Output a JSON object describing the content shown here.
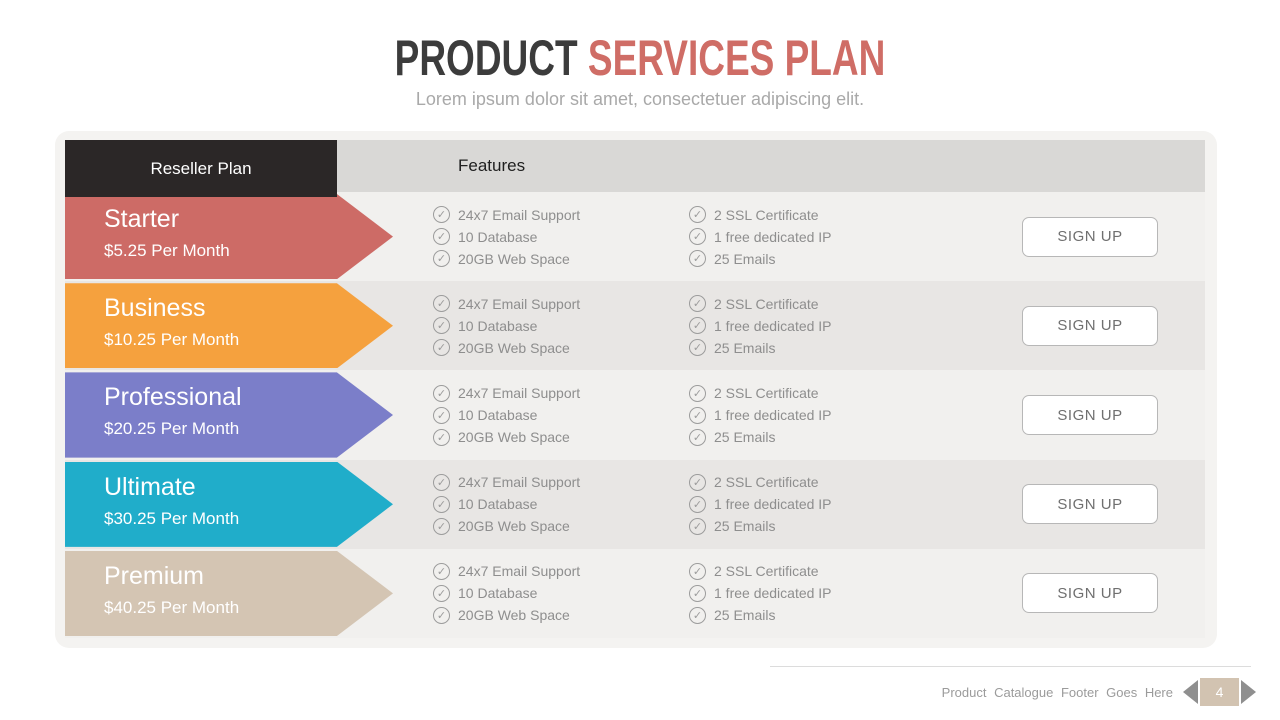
{
  "colors": {
    "title_primary": "#3c3c3c",
    "title_accent": "#cf6d66",
    "page_box": "#d2c3b1"
  },
  "header": {
    "title_primary": "PRODUCT",
    "title_accent": "SERVICES PLAN",
    "subtitle": "Lorem ipsum dolor sit amet, consectetuer adipiscing elit."
  },
  "table": {
    "plan_column_header": "Reseller Plan",
    "features_column_header": "Features",
    "signup_label": "SIGN UP",
    "plans": [
      {
        "name": "Starter",
        "price": "$5.25 Per Month",
        "color": "#cd6b66"
      },
      {
        "name": "Business",
        "price": "$10.25 Per Month",
        "color": "#f5a13e"
      },
      {
        "name": "Professional",
        "price": "$20.25 Per Month",
        "color": "#7b7ec9"
      },
      {
        "name": "Ultimate",
        "price": "$30.25 Per Month",
        "color": "#20adca"
      },
      {
        "name": "Premium",
        "price": "$40.25 Per Month",
        "color": "#d4c5b3"
      }
    ],
    "features_col1": [
      "24x7 Email Support",
      "10 Database",
      "20GB Web Space"
    ],
    "features_col2": [
      "2 SSL Certificate",
      "1 free dedicated IP",
      "25 Emails"
    ]
  },
  "icons": {
    "feature_check": "✓"
  },
  "footer": {
    "text": "Product Catalogue Footer Goes Here",
    "page_number": "4"
  }
}
